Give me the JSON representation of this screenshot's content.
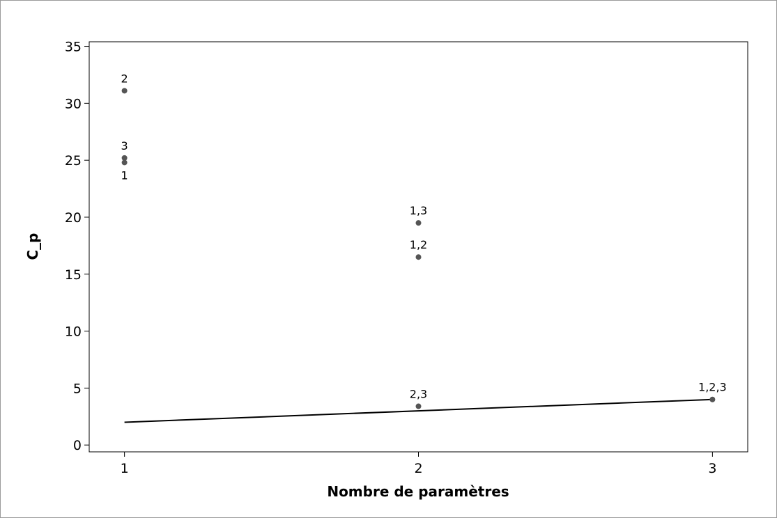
{
  "chart_data": {
    "type": "scatter",
    "title": "",
    "xlabel": "Nombre de paramètres",
    "ylabel": "C_p",
    "xlim": [
      0.88,
      3.12
    ],
    "ylim": [
      -0.6,
      35.4
    ],
    "x_ticks": [
      1,
      2,
      3
    ],
    "y_ticks": [
      0,
      5,
      10,
      15,
      20,
      25,
      30,
      35
    ],
    "grid": false,
    "legend": "none",
    "point_color": "#555555",
    "line_color": "#000000",
    "points": [
      {
        "x": 1,
        "y": 31.1,
        "label": "2",
        "label_pos": "above"
      },
      {
        "x": 1,
        "y": 25.2,
        "label": "3",
        "label_pos": "above"
      },
      {
        "x": 1,
        "y": 24.8,
        "label": "1",
        "label_pos": "below"
      },
      {
        "x": 2,
        "y": 19.5,
        "label": "1,3",
        "label_pos": "above"
      },
      {
        "x": 2,
        "y": 16.5,
        "label": "1,2",
        "label_pos": "above"
      },
      {
        "x": 2,
        "y": 3.4,
        "label": "2,3",
        "label_pos": "above"
      },
      {
        "x": 3,
        "y": 4.0,
        "label": "1,2,3",
        "label_pos": "above"
      }
    ],
    "reference_line": {
      "x": [
        1,
        3
      ],
      "y": [
        2,
        4
      ]
    }
  }
}
